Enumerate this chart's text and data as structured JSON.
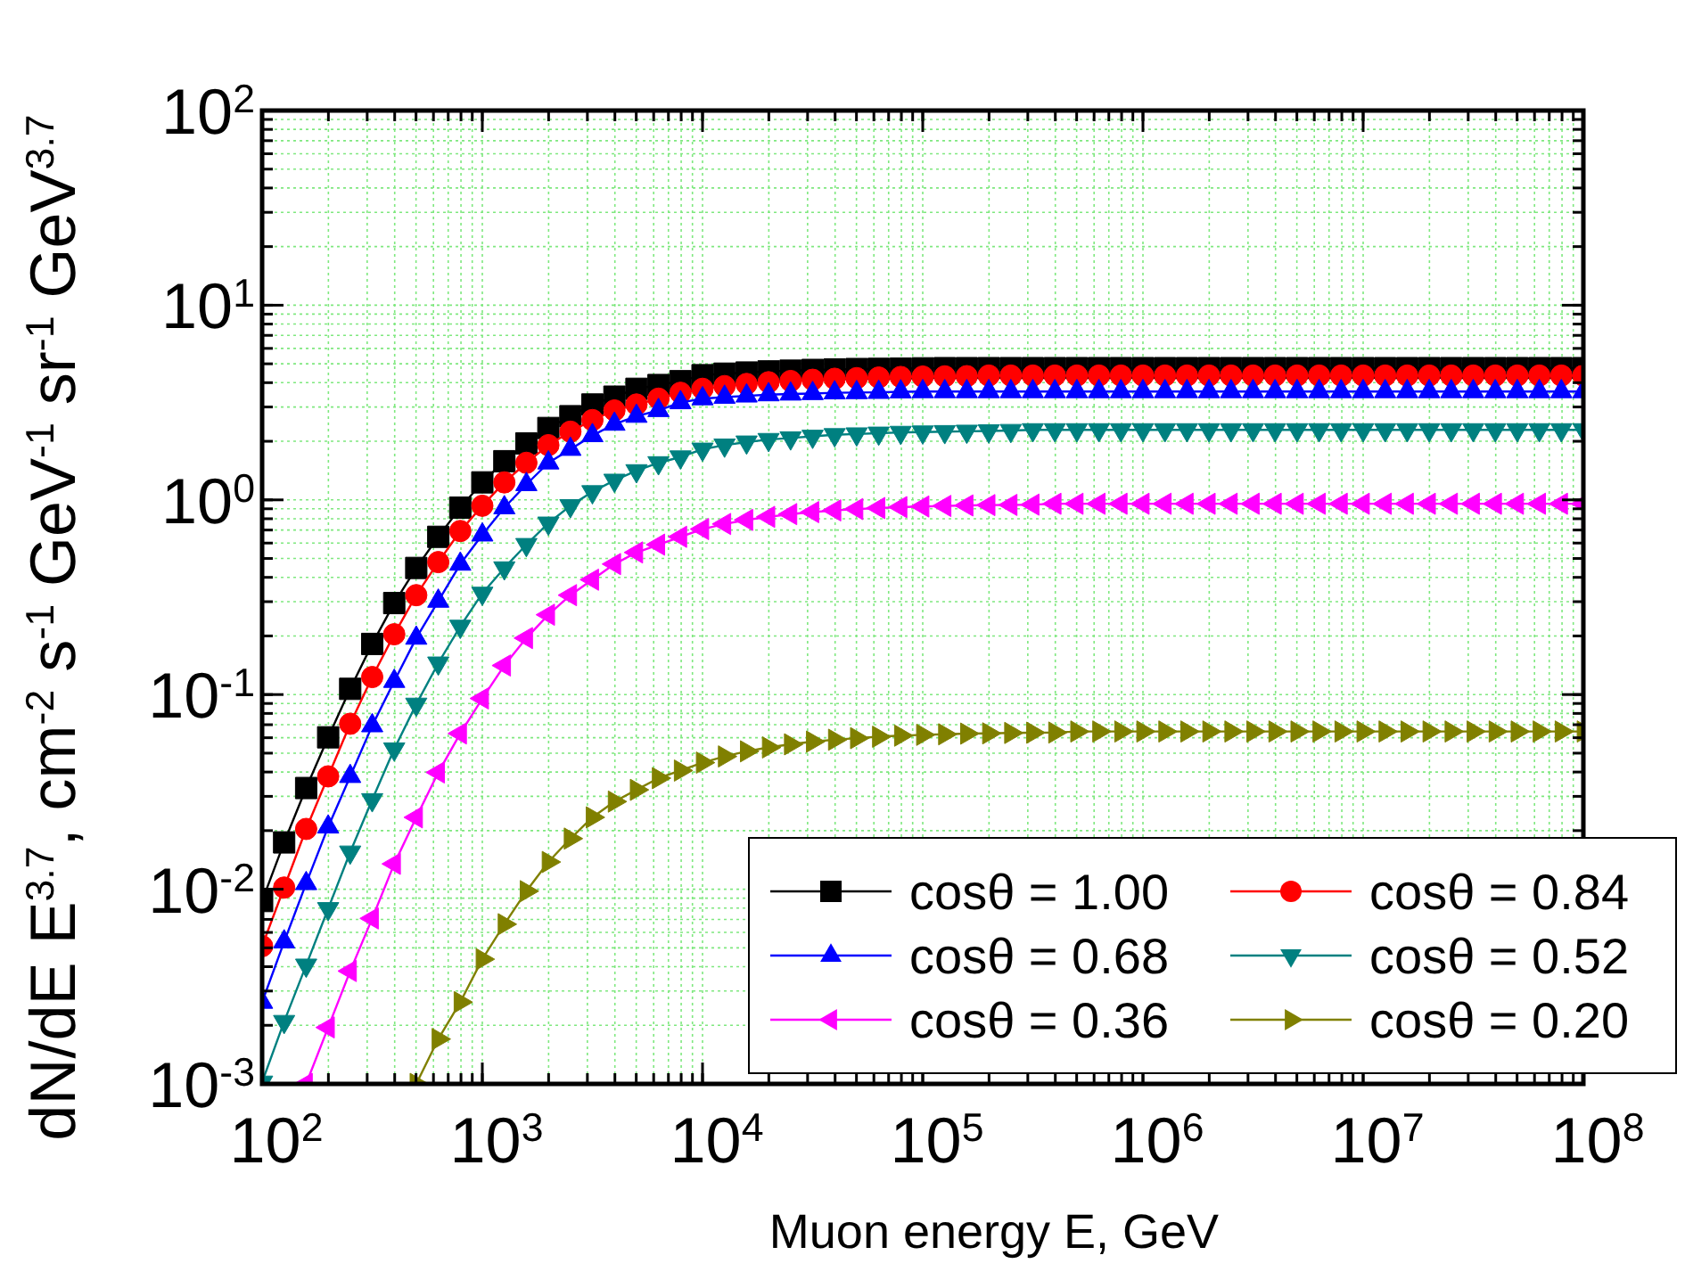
{
  "chart_data": {
    "type": "line",
    "xlabel": "Muon energy E, GeV",
    "ylabel": "dN/dE E$^{3.7}$, cm$^{-2}$ s$^{-1}$ GeV$^{-1}$ sr$^{-1}$ GeV$^{3.7}$",
    "log": "xy",
    "grid": true,
    "legend": "bottom right",
    "line_style": "solid",
    "xlim": [
      100,
      100000000
    ],
    "ylim": [
      0.001,
      100
    ],
    "xticks": [
      {
        "value": 100,
        "label": "10$^{2}$"
      },
      {
        "value": 1000,
        "label": "10$^{3}$"
      },
      {
        "value": 10000,
        "label": "10$^{4}$"
      },
      {
        "value": 100000,
        "label": "10$^{5}$"
      },
      {
        "value": 1000000,
        "label": "10$^{6}$"
      },
      {
        "value": 10000000,
        "label": "10$^{7}$"
      },
      {
        "value": 100000000,
        "label": "10$^{8}$"
      }
    ],
    "yticks": [
      {
        "value": 0.001,
        "label": "10$^{-3}$"
      },
      {
        "value": 0.01,
        "label": "10$^{-2}$"
      },
      {
        "value": 0.1,
        "label": "10$^{-1}$"
      },
      {
        "value": 1,
        "label": "10$^{0}$"
      },
      {
        "value": 10,
        "label": "10$^{1}$"
      },
      {
        "value": 100,
        "label": "10$^{2}$"
      }
    ],
    "x": [
      100.0,
      125.9,
      158.5,
      199.5,
      251.2,
      316.2,
      398.1,
      501.2,
      631.0,
      794.3,
      1000.0,
      1259.0,
      1585.0,
      1995.0,
      2512.0,
      3162.0,
      3981.0,
      5012.0,
      6310.0,
      7943.0,
      10000.0,
      12590.0,
      15850.0,
      19950.0,
      25120.0,
      31620.0,
      39810.0,
      50120.0,
      63100.0,
      79430.0,
      100000.0,
      125900.0,
      158500.0,
      199500.0,
      251200.0,
      316200.0,
      398100.0,
      501200.0,
      631000.0,
      794300.0,
      1000000.0,
      1259000.0,
      1585000.0,
      1995000.0,
      2512000.0,
      3162000.0,
      3981000.0,
      5012000.0,
      6310000.0,
      7943000.0,
      10000000.0,
      12590000.0,
      15850000.0,
      19950000.0,
      25120000.0,
      31620000.0,
      39810000.0,
      50120000.0,
      63100000.0,
      79430000.0,
      100000000.0
    ],
    "series": [
      {
        "name": "cosθ = 1.00",
        "color": "#000000",
        "marker": "square",
        "values": [
          0.0087,
          0.0174,
          0.0331,
          0.0603,
          0.107,
          0.182,
          0.295,
          0.447,
          0.646,
          0.912,
          1.23,
          1.58,
          1.95,
          2.34,
          2.69,
          3.09,
          3.39,
          3.72,
          3.89,
          4.07,
          4.37,
          4.45,
          4.51,
          4.57,
          4.61,
          4.65,
          4.68,
          4.7,
          4.71,
          4.72,
          4.74,
          4.75,
          4.75,
          4.75,
          4.75,
          4.75,
          4.75,
          4.75,
          4.75,
          4.75,
          4.75,
          4.75,
          4.75,
          4.75,
          4.75,
          4.75,
          4.75,
          4.75,
          4.75,
          4.75,
          4.75,
          4.75,
          4.75,
          4.75,
          4.75,
          4.75,
          4.75,
          4.75,
          4.75,
          4.75,
          4.75
        ]
      },
      {
        "name": "cosθ = 0.84",
        "color": "#ff0000",
        "marker": "circle",
        "values": [
          0.0051,
          0.0102,
          0.0204,
          0.038,
          0.0708,
          0.123,
          0.204,
          0.324,
          0.479,
          0.692,
          0.933,
          1.23,
          1.55,
          1.91,
          2.24,
          2.57,
          2.88,
          3.09,
          3.31,
          3.55,
          3.72,
          3.84,
          3.94,
          4.02,
          4.08,
          4.14,
          4.19,
          4.22,
          4.25,
          4.28,
          4.3,
          4.31,
          4.32,
          4.35,
          4.35,
          4.35,
          4.35,
          4.35,
          4.35,
          4.35,
          4.35,
          4.35,
          4.35,
          4.35,
          4.35,
          4.35,
          4.35,
          4.35,
          4.35,
          4.35,
          4.35,
          4.35,
          4.35,
          4.35,
          4.35,
          4.35,
          4.35,
          4.35,
          4.35,
          4.35,
          4.35
        ]
      },
      {
        "name": "cosθ = 0.68",
        "color": "#0000ff",
        "marker": "triangle",
        "values": [
          0.00263,
          0.00537,
          0.0107,
          0.0209,
          0.038,
          0.0692,
          0.117,
          0.195,
          0.302,
          0.468,
          0.661,
          0.912,
          1.2,
          1.55,
          1.82,
          2.14,
          2.45,
          2.69,
          2.88,
          3.16,
          3.31,
          3.37,
          3.42,
          3.47,
          3.5,
          3.52,
          3.55,
          3.56,
          3.57,
          3.59,
          3.6,
          3.6,
          3.6,
          3.6,
          3.6,
          3.6,
          3.6,
          3.6,
          3.6,
          3.6,
          3.6,
          3.6,
          3.6,
          3.6,
          3.6,
          3.6,
          3.6,
          3.6,
          3.6,
          3.6,
          3.6,
          3.6,
          3.6,
          3.6,
          3.6,
          3.6,
          3.6,
          3.6,
          3.6,
          3.6,
          3.6
        ]
      },
      {
        "name": "cosθ = 0.52",
        "color": "#008080",
        "marker": "triangle-down",
        "values": [
          0.00102,
          0.00209,
          0.00407,
          0.00794,
          0.0155,
          0.0288,
          0.0525,
          0.0891,
          0.145,
          0.224,
          0.331,
          0.447,
          0.589,
          0.759,
          0.933,
          1.1,
          1.26,
          1.41,
          1.55,
          1.66,
          1.82,
          1.91,
          1.98,
          2.04,
          2.08,
          2.12,
          2.16,
          2.18,
          2.2,
          2.22,
          2.23,
          2.24,
          2.25,
          2.26,
          2.27,
          2.29,
          2.29,
          2.29,
          2.29,
          2.29,
          2.29,
          2.29,
          2.29,
          2.29,
          2.29,
          2.29,
          2.29,
          2.29,
          2.29,
          2.29,
          2.29,
          2.29,
          2.29,
          2.29,
          2.29,
          2.29,
          2.29,
          2.29,
          2.29,
          2.29,
          2.29
        ]
      },
      {
        "name": "cosθ = 0.36",
        "color": "#ff00ff",
        "marker": "triangle-left",
        "values": [
          null,
          null,
          0.001,
          0.00195,
          0.0038,
          0.00708,
          0.0135,
          0.0234,
          0.0398,
          0.0631,
          0.0955,
          0.141,
          0.195,
          0.257,
          0.324,
          0.389,
          0.468,
          0.537,
          0.589,
          0.646,
          0.708,
          0.752,
          0.789,
          0.818,
          0.845,
          0.865,
          0.883,
          0.897,
          0.908,
          0.918,
          0.925,
          0.931,
          0.936,
          0.94,
          0.942,
          0.945,
          0.955,
          0.955,
          0.955,
          0.955,
          0.955,
          0.955,
          0.955,
          0.955,
          0.955,
          0.955,
          0.955,
          0.955,
          0.955,
          0.955,
          0.955,
          0.955,
          0.955,
          0.955,
          0.955,
          0.955,
          0.955,
          0.955,
          0.955,
          0.955,
          0.955
        ]
      },
      {
        "name": "cosθ = 0.20",
        "color": "#808000",
        "marker": "triangle-right",
        "values": [
          null,
          null,
          null,
          null,
          null,
          null,
          null,
          0.001,
          0.0017,
          0.00263,
          0.00437,
          0.00661,
          0.00977,
          0.0138,
          0.0182,
          0.0234,
          0.0282,
          0.0324,
          0.0372,
          0.0407,
          0.0447,
          0.0481,
          0.0511,
          0.0535,
          0.0555,
          0.0573,
          0.0586,
          0.0597,
          0.0607,
          0.0615,
          0.0621,
          0.0625,
          0.063,
          0.0632,
          0.0635,
          0.0637,
          0.0638,
          0.0646,
          0.0646,
          0.0646,
          0.0646,
          0.0646,
          0.0646,
          0.0646,
          0.0646,
          0.0646,
          0.0646,
          0.0646,
          0.0646,
          0.0646,
          0.0646,
          0.0646,
          0.0646,
          0.0646,
          0.0646,
          0.0646,
          0.0646,
          0.0646,
          0.0646,
          0.0646,
          0.0646
        ]
      }
    ]
  }
}
